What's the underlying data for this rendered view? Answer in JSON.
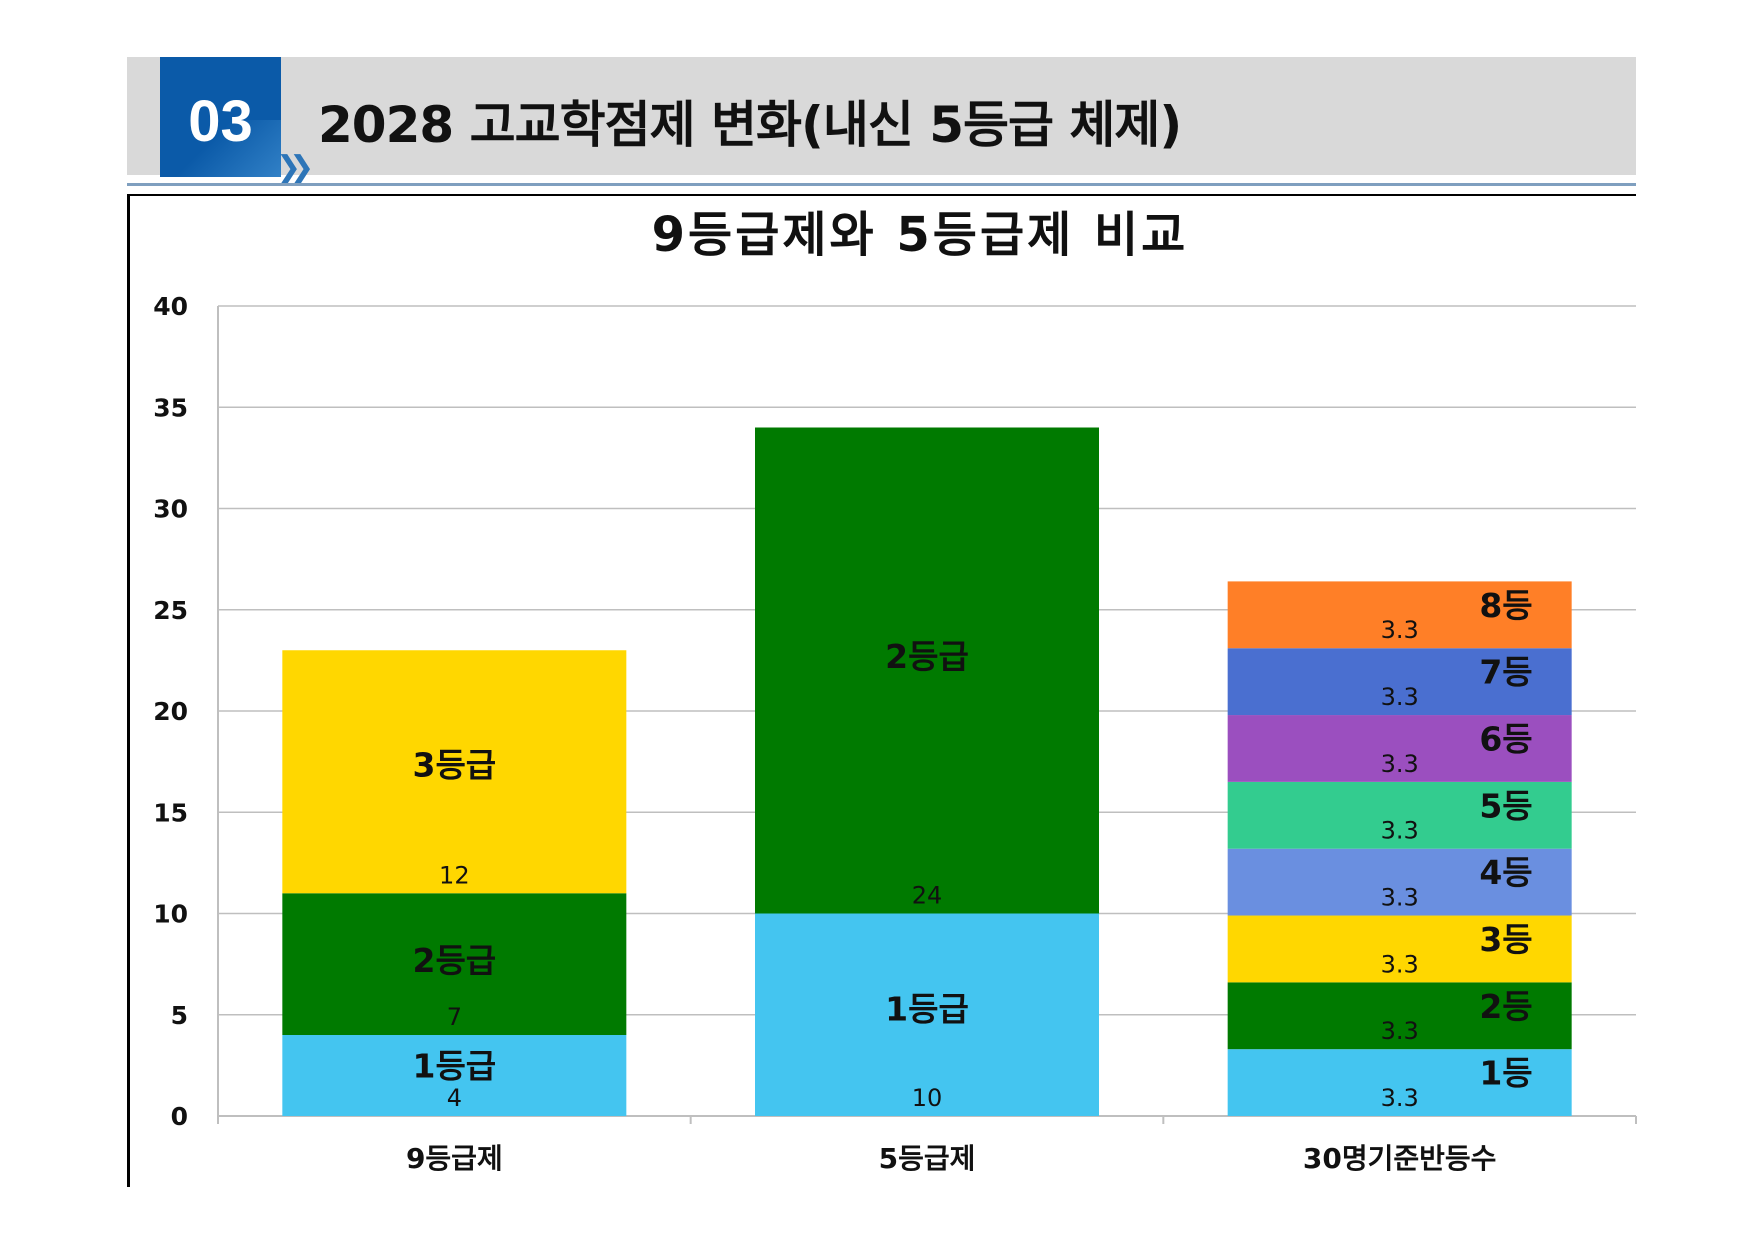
{
  "header": {
    "section_number": "03",
    "title": "2028 고교학점제 변화(내신 5등급 체제)"
  },
  "colors": {
    "header_band": "#d9d9d9",
    "badge": "#0b5aa8"
  },
  "chart_data": {
    "type": "bar",
    "stacked": true,
    "title": "9등급제와 5등급제 비교",
    "xlabel": "",
    "ylabel": "",
    "ylim": [
      0,
      40
    ],
    "yticks": [
      0,
      5,
      10,
      15,
      20,
      25,
      30,
      35,
      40
    ],
    "grid": true,
    "categories": [
      "9등급제",
      "5등급제",
      "30명기준반등수"
    ],
    "bars": [
      {
        "category": "9등급제",
        "segments": [
          {
            "name": "1등급",
            "value": 4,
            "label": "4",
            "color": "#44c5f0"
          },
          {
            "name": "2등급",
            "value": 7,
            "label": "7",
            "color": "#007a00"
          },
          {
            "name": "3등급",
            "value": 12,
            "label": "12",
            "color": "#ffd700"
          }
        ]
      },
      {
        "category": "5등급제",
        "segments": [
          {
            "name": "1등급",
            "value": 10,
            "label": "10",
            "color": "#44c5f0"
          },
          {
            "name": "2등급",
            "value": 24,
            "label": "24",
            "color": "#007a00"
          }
        ]
      },
      {
        "category": "30명기준반등수",
        "segments": [
          {
            "name": "1등",
            "value": 3.3,
            "label": "3.3",
            "color": "#44c5f0"
          },
          {
            "name": "2등",
            "value": 3.3,
            "label": "3.3",
            "color": "#007a00"
          },
          {
            "name": "3등",
            "value": 3.3,
            "label": "3.3",
            "color": "#ffd700"
          },
          {
            "name": "4등",
            "value": 3.3,
            "label": "3.3",
            "color": "#6a8fe0"
          },
          {
            "name": "5등",
            "value": 3.3,
            "label": "3.3",
            "color": "#33cc8f"
          },
          {
            "name": "6등",
            "value": 3.3,
            "label": "3.3",
            "color": "#9b4fbf"
          },
          {
            "name": "7등",
            "value": 3.3,
            "label": "3.3",
            "color": "#4a6fd0"
          },
          {
            "name": "8등",
            "value": 3.3,
            "label": "3.3",
            "color": "#ff7f27"
          }
        ]
      }
    ]
  }
}
